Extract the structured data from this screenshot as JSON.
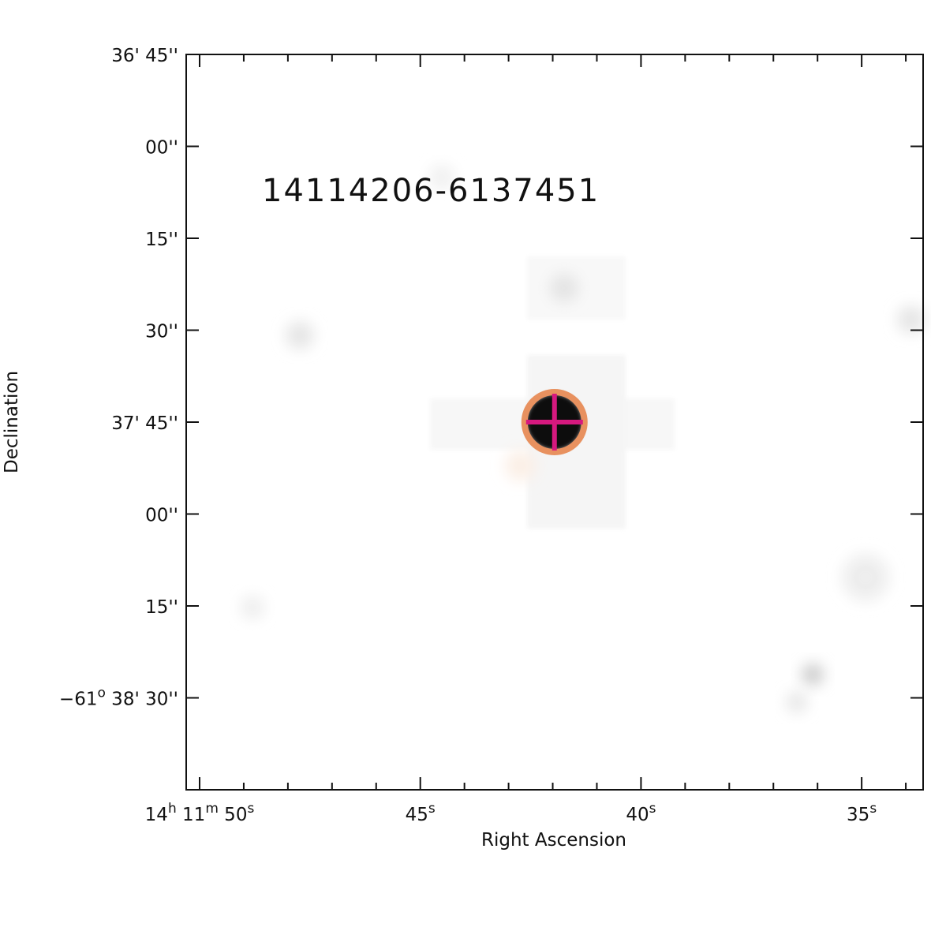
{
  "chart_data": {
    "type": "sky-image",
    "source_name": "14114206-6137451",
    "x_label": "Right Ascension",
    "y_label": "Declination",
    "xlim": [
      50.304,
      33.608
    ],
    "ylim": [
      2205,
      2325
    ],
    "xticks": [
      {
        "value": 50,
        "label": [
          "14",
          "h",
          " 11",
          "m",
          " 50",
          "s"
        ]
      },
      {
        "value": 45,
        "label": [
          "45",
          "s"
        ]
      },
      {
        "value": 40,
        "label": [
          "40",
          "s"
        ]
      },
      {
        "value": 35,
        "label": [
          "35",
          "s"
        ]
      }
    ],
    "xminorticks": [
      49,
      48,
      47,
      46,
      44,
      43,
      42,
      41,
      39,
      38,
      37,
      36,
      34
    ],
    "yticks": [
      {
        "value": 2205,
        "label": [
          "36' 45''"
        ]
      },
      {
        "value": 2220,
        "label": [
          "00''"
        ]
      },
      {
        "value": 2235,
        "label": [
          "15''"
        ]
      },
      {
        "value": 2250,
        "label": [
          "30''"
        ]
      },
      {
        "value": 2265,
        "label": [
          "37' 45''"
        ]
      },
      {
        "value": 2280,
        "label": [
          "00''"
        ]
      },
      {
        "value": 2295,
        "label": [
          "15''"
        ]
      },
      {
        "value": 2310,
        "label": [
          "−61",
          "o",
          " 38' 30''"
        ]
      }
    ],
    "source": {
      "x": 41.96,
      "y": 2265,
      "circle_color": "#e8915f",
      "cross_color": "#d6197f"
    },
    "title_color": "#1a5c3a"
  }
}
